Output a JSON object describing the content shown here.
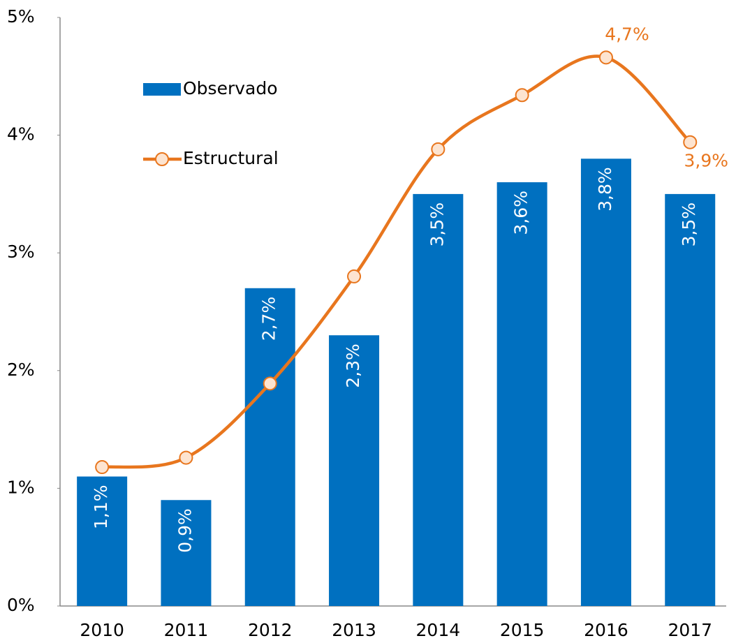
{
  "chart_data": {
    "type": "bar_line",
    "categories": [
      "2010",
      "2011",
      "2012",
      "2013",
      "2014",
      "2015",
      "2016",
      "2017"
    ],
    "series": [
      {
        "name": "Observado",
        "type": "bar",
        "color": "#0070c0",
        "values": [
          1.1,
          0.9,
          2.7,
          2.3,
          3.5,
          3.6,
          3.8,
          3.5
        ],
        "value_labels": [
          "1,1%",
          "0,9%",
          "2,7%",
          "2,3%",
          "3,5%",
          "3,6%",
          "3,8%",
          "3,5%"
        ]
      },
      {
        "name": "Estructural",
        "type": "line",
        "color": "#e8761e",
        "values": [
          1.18,
          1.26,
          1.89,
          2.8,
          3.88,
          4.34,
          4.66,
          3.94
        ],
        "value_labels": [
          null,
          null,
          null,
          null,
          null,
          null,
          "4,7%",
          "3,9%"
        ]
      }
    ],
    "ylim": [
      0,
      5
    ],
    "yticks": [
      {
        "value": 0,
        "label": "0%"
      },
      {
        "value": 1,
        "label": "1%"
      },
      {
        "value": 2,
        "label": "2%"
      },
      {
        "value": 3,
        "label": "3%"
      },
      {
        "value": 4,
        "label": "4%"
      },
      {
        "value": 5,
        "label": "5%"
      }
    ],
    "grid": false,
    "legend": "upper left"
  }
}
